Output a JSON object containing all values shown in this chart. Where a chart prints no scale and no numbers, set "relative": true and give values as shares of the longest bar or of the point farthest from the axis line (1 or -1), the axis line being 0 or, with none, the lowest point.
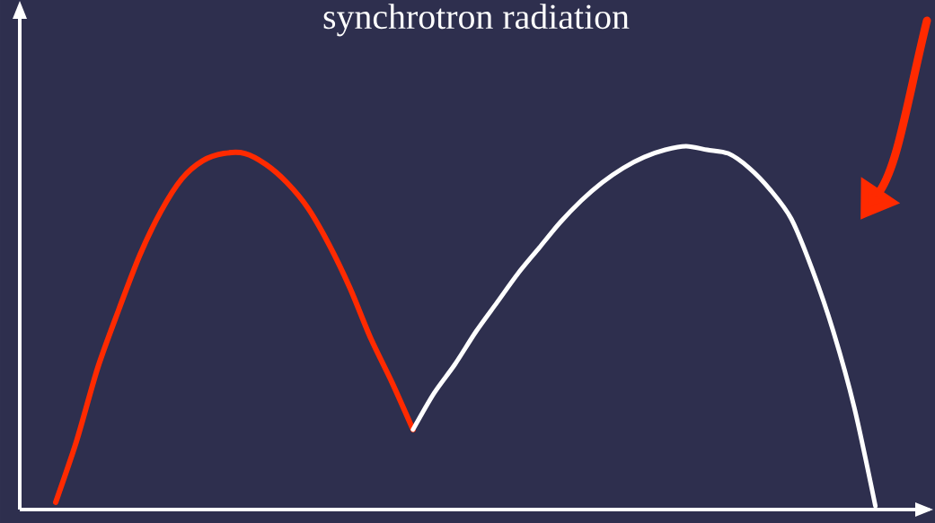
{
  "chart_data": {
    "type": "line",
    "title": "synchrotron radiation",
    "relative": true,
    "line_style": "solid",
    "legend": false,
    "categories": [
      null,
      null,
      null,
      null,
      null,
      null,
      null,
      null,
      null,
      null,
      null,
      null,
      null,
      null,
      null,
      null,
      null,
      null,
      null,
      null,
      null,
      null,
      null,
      null,
      null,
      null,
      null,
      null,
      null,
      null,
      null,
      null,
      null,
      null,
      null,
      null,
      null,
      null,
      null,
      null
    ],
    "series": [
      {
        "color": "#ff2a00",
        "values": [
          0.02,
          0.19,
          0.39,
          0.55,
          0.7,
          0.82,
          0.91,
          0.96,
          0.98,
          0.98,
          0.95,
          0.9,
          0.83,
          0.73,
          0.61,
          0.47,
          0.35,
          0.22,
          null,
          null,
          null,
          null,
          null,
          null,
          null,
          null,
          null,
          null,
          null,
          null,
          null,
          null,
          null,
          null,
          null,
          null,
          null,
          null,
          null,
          null
        ]
      },
      {
        "color": "#ffffff",
        "values": [
          null,
          null,
          null,
          null,
          null,
          null,
          null,
          null,
          null,
          null,
          null,
          null,
          null,
          null,
          null,
          null,
          null,
          0.22,
          0.32,
          0.4,
          0.49,
          0.57,
          0.65,
          0.72,
          0.79,
          0.85,
          0.9,
          0.94,
          0.97,
          0.99,
          1.0,
          0.99,
          0.98,
          0.94,
          0.88,
          0.8,
          0.66,
          0.49,
          0.28,
          0.01
        ]
      }
    ]
  }
}
